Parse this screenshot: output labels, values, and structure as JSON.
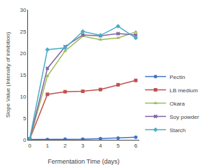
{
  "chart_data": {
    "type": "line",
    "x": [
      0,
      1,
      2,
      3,
      4,
      5,
      6
    ],
    "series": [
      {
        "name": "Pectin",
        "color": "#4472C4",
        "marker": "circle",
        "values": [
          0.1,
          0.1,
          0.15,
          0.15,
          0.3,
          0.4,
          0.6
        ]
      },
      {
        "name": "LB medium",
        "color": "#C0504D",
        "marker": "square",
        "values": [
          0.2,
          10.5,
          11.1,
          11.2,
          11.6,
          12.7,
          13.7
        ]
      },
      {
        "name": "Okara",
        "color": "#9BBB59",
        "marker": "triangle-up",
        "values": [
          0.1,
          14.7,
          20.5,
          23.9,
          23.1,
          23.5,
          24.9
        ]
      },
      {
        "name": "Soy powder",
        "color": "#8064A2",
        "marker": "x",
        "values": [
          0.2,
          16.5,
          21.5,
          24.2,
          24.0,
          24.5,
          24.2
        ]
      },
      {
        "name": "Starch",
        "color": "#4BACC6",
        "marker": "diamond",
        "values": [
          0.3,
          20.8,
          21.2,
          25.0,
          24.1,
          26.2,
          23.5
        ]
      }
    ],
    "xlabel": "Fermentation Time (days)",
    "ylabel": "Slope Value (Intensity of inhibition)",
    "xlim": [
      -0.1,
      6.2
    ],
    "ylim": [
      0,
      30
    ],
    "xticks": [
      0,
      1,
      2,
      3,
      4,
      5,
      6
    ],
    "yticks": [
      0,
      5,
      10,
      15,
      20,
      25,
      30
    ],
    "grid": false,
    "legend": "lower right"
  }
}
